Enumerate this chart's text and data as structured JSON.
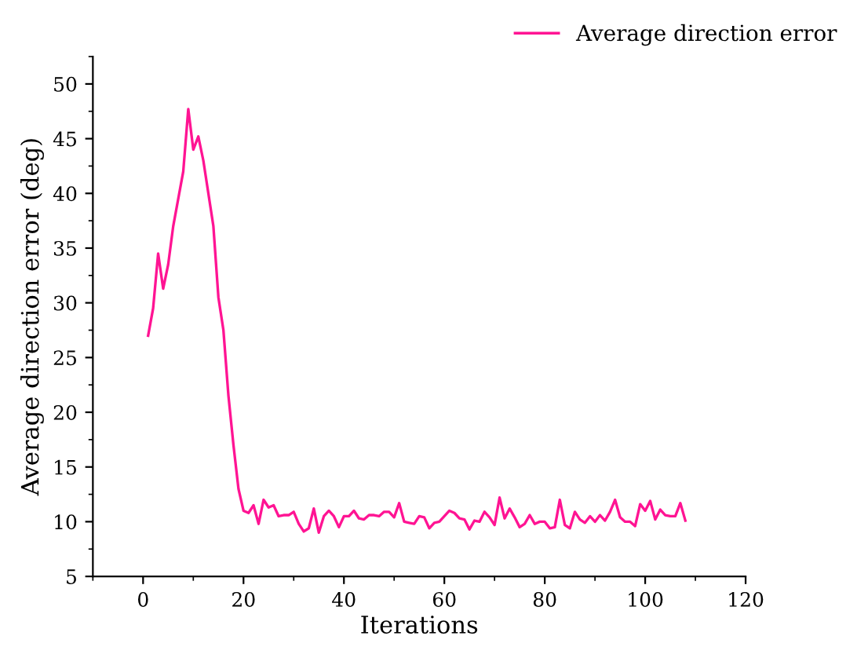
{
  "chart_data": {
    "type": "line",
    "xlabel": "Iterations",
    "ylabel": "Average direction error (deg)",
    "x": [
      1,
      2,
      3,
      4,
      5,
      6,
      7,
      8,
      9,
      10,
      11,
      12,
      13,
      14,
      15,
      16,
      17,
      18,
      19,
      20,
      21,
      22,
      23,
      24,
      25,
      26,
      27,
      28,
      29,
      30,
      31,
      32,
      33,
      34,
      35,
      36,
      37,
      38,
      39,
      40,
      41,
      42,
      43,
      44,
      45,
      46,
      47,
      48,
      49,
      50,
      51,
      52,
      53,
      54,
      55,
      56,
      57,
      58,
      59,
      60,
      61,
      62,
      63,
      64,
      65,
      66,
      67,
      68,
      69,
      70,
      71,
      72,
      73,
      74,
      75,
      76,
      77,
      78,
      79,
      80,
      81,
      82,
      83,
      84,
      85,
      86,
      87,
      88,
      89,
      90,
      91,
      92,
      93,
      94,
      95,
      96,
      97,
      98,
      99,
      100,
      101,
      102,
      103,
      104,
      105,
      106,
      107,
      108
    ],
    "series": [
      {
        "name": "Average direction error",
        "color": "#ff1493",
        "values": [
          27,
          29.5,
          34.5,
          31.3,
          33.5,
          37,
          39.5,
          42,
          47.7,
          44,
          45.2,
          43,
          40,
          37,
          30.5,
          27.5,
          21.5,
          17,
          13,
          11,
          10.8,
          11.5,
          9.8,
          12,
          11.3,
          11.5,
          10.5,
          10.6,
          10.6,
          10.9,
          9.8,
          9.1,
          9.4,
          11.2,
          9.0,
          10.5,
          11.0,
          10.5,
          9.5,
          10.5,
          10.5,
          11.0,
          10.3,
          10.2,
          10.6,
          10.6,
          10.5,
          10.9,
          10.9,
          10.4,
          11.7,
          10.0,
          9.9,
          9.8,
          10.5,
          10.4,
          9.4,
          9.9,
          10.0,
          10.5,
          11.0,
          10.8,
          10.3,
          10.2,
          9.3,
          10.1,
          10.0,
          10.9,
          10.4,
          9.7,
          12.2,
          10.3,
          11.2,
          10.4,
          9.5,
          9.8,
          10.6,
          9.8,
          10.0,
          10.0,
          9.4,
          9.5,
          12.0,
          9.7,
          9.4,
          10.9,
          10.2,
          9.9,
          10.5,
          10.0,
          10.6,
          10.1,
          10.9,
          12.0,
          10.4,
          10.0,
          10.0,
          9.6,
          11.6,
          11.0,
          11.9,
          10.2,
          11.1,
          10.6,
          10.5,
          10.5,
          11.7,
          10.1
        ]
      }
    ],
    "xlim": [
      -10,
      120
    ],
    "xticks": [
      0,
      20,
      40,
      60,
      80,
      100,
      120
    ],
    "ylim": [
      5,
      52.5
    ],
    "yticks": [
      5,
      10,
      15,
      20,
      25,
      30,
      35,
      40,
      45,
      50
    ],
    "legend": "top right",
    "grid": false,
    "marker": "none",
    "line_style": "solid"
  }
}
